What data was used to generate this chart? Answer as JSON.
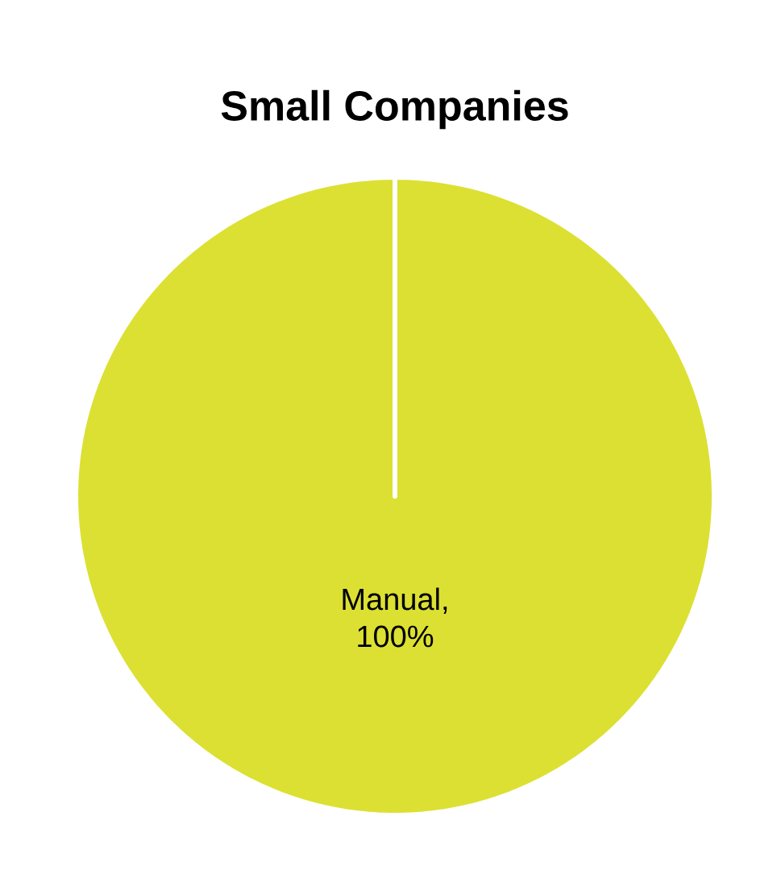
{
  "chart_data": {
    "type": "pie",
    "title": "Small Companies",
    "categories": [
      null
    ],
    "values": [
      100
    ],
    "colors": [
      "#dce032"
    ],
    "value_labels": [
      "Manual, 100%"
    ]
  }
}
